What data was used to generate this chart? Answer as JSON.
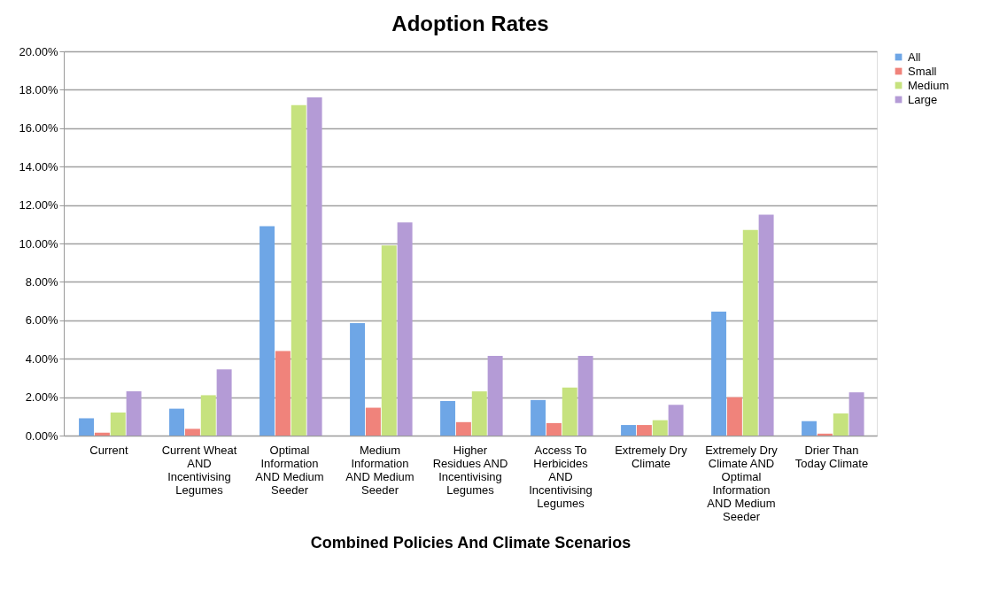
{
  "chart_data": {
    "type": "bar",
    "title": "Adoption Rates",
    "xlabel": "Combined Policies And Climate Scenarios",
    "categories": [
      "Current",
      "Current Wheat AND Incentivising Legumes",
      "Optimal Information AND Medium Seeder",
      "Medium Information AND Medium Seeder",
      "Higher Residues AND Incentivising Legumes",
      "Access To Herbicides AND Incentivising Legumes",
      "Extremely Dry Climate",
      "Extremely Dry Climate AND Optimal Information AND Medium Seeder",
      "Drier Than Today Climate"
    ],
    "series": [
      {
        "name": "All",
        "color": "#6ea6e6",
        "values": [
          0.9,
          1.4,
          10.9,
          5.85,
          1.8,
          1.85,
          0.55,
          6.45,
          0.75
        ]
      },
      {
        "name": "Small",
        "color": "#f0837b",
        "values": [
          0.15,
          0.35,
          4.4,
          1.45,
          0.7,
          0.65,
          0.55,
          2.0,
          0.1
        ]
      },
      {
        "name": "Medium",
        "color": "#c6e27e",
        "values": [
          1.2,
          2.1,
          17.2,
          9.9,
          2.3,
          2.5,
          0.8,
          10.7,
          1.15
        ]
      },
      {
        "name": "Large",
        "color": "#b49bd6",
        "values": [
          2.3,
          3.45,
          17.6,
          11.1,
          4.15,
          4.15,
          1.6,
          11.5,
          2.25
        ]
      }
    ],
    "ylim": [
      0,
      20
    ],
    "yticks": [
      {
        "value": 0,
        "label": "0.00%"
      },
      {
        "value": 2,
        "label": "2.00%"
      },
      {
        "value": 4,
        "label": "4.00%"
      },
      {
        "value": 6,
        "label": "6.00%"
      },
      {
        "value": 8,
        "label": "8.00%"
      },
      {
        "value": 10,
        "label": "10.00%"
      },
      {
        "value": 12,
        "label": "12.00%"
      },
      {
        "value": 14,
        "label": "14.00%"
      },
      {
        "value": 16,
        "label": "16.00%"
      },
      {
        "value": 18,
        "label": "18.00%"
      },
      {
        "value": 20,
        "label": "20.00%"
      }
    ],
    "grid": "y",
    "legend": "right"
  }
}
